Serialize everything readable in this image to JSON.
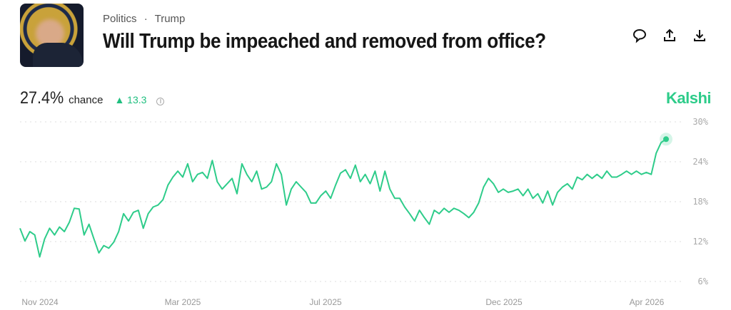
{
  "header": {
    "breadcrumb": [
      "Politics",
      "Trump"
    ],
    "separator": "·",
    "title": "Will Trump be impeached and removed from office?"
  },
  "actions": [
    {
      "name": "comment-icon"
    },
    {
      "name": "share-icon"
    },
    {
      "name": "download-icon"
    }
  ],
  "stat": {
    "value": "27.4%",
    "label": "chance",
    "delta": "▲ 13.3",
    "info": "i"
  },
  "brand": "Kalshi",
  "colors": {
    "accent": "#2ecc8a",
    "grid": "#dddddd",
    "axis_text": "#aaaaaa"
  },
  "chart_data": {
    "type": "line",
    "ylim": [
      6,
      30
    ],
    "yticks": [
      "30%",
      "24%",
      "18%",
      "12%",
      "6%"
    ],
    "ytick_values": [
      30,
      24,
      18,
      12,
      6
    ],
    "xticks": [
      "Nov 2024",
      "Mar 2025",
      "Jul 2025",
      "Dec 2025",
      "Apr 2026"
    ],
    "xtick_months": [
      0,
      4,
      8,
      13,
      17
    ],
    "x_range_months": [
      -0.56,
      17.54
    ],
    "series": [
      {
        "name": "Yes chance",
        "last": 27.4,
        "values": [
          14.0,
          12.1,
          13.5,
          13.0,
          9.7,
          12.4,
          14.0,
          13.0,
          14.2,
          13.5,
          14.9,
          17.0,
          16.9,
          13.0,
          14.6,
          12.4,
          10.3,
          11.4,
          11.0,
          11.9,
          13.5,
          16.2,
          15.1,
          16.4,
          16.7,
          14.0,
          16.2,
          17.2,
          17.5,
          18.3,
          20.5,
          21.7,
          22.6,
          21.7,
          23.7,
          21.0,
          22.1,
          22.4,
          21.5,
          24.2,
          21.0,
          19.9,
          20.7,
          21.5,
          19.2,
          23.7,
          22.1,
          21.0,
          22.6,
          19.9,
          20.2,
          21.0,
          23.7,
          22.1,
          17.5,
          19.9,
          21.0,
          20.2,
          19.4,
          17.8,
          17.8,
          18.9,
          19.6,
          18.5,
          20.5,
          22.3,
          22.8,
          21.5,
          23.5,
          21.0,
          22.1,
          20.7,
          22.6,
          19.6,
          22.6,
          19.9,
          18.5,
          18.5,
          17.2,
          16.2,
          15.1,
          16.7,
          15.6,
          14.6,
          16.7,
          16.2,
          17.0,
          16.4,
          17.0,
          16.7,
          16.2,
          15.6,
          16.4,
          17.8,
          20.2,
          21.5,
          20.7,
          19.4,
          19.9,
          19.4,
          19.6,
          19.9,
          18.9,
          19.9,
          18.5,
          19.2,
          17.8,
          19.6,
          17.5,
          19.4,
          20.2,
          20.7,
          19.9,
          21.7,
          21.3,
          22.1,
          21.5,
          22.1,
          21.5,
          22.6,
          21.7,
          21.7,
          22.1,
          22.6,
          22.1,
          22.6,
          22.1,
          22.4,
          22.1,
          25.3,
          26.9,
          27.4
        ]
      }
    ]
  }
}
